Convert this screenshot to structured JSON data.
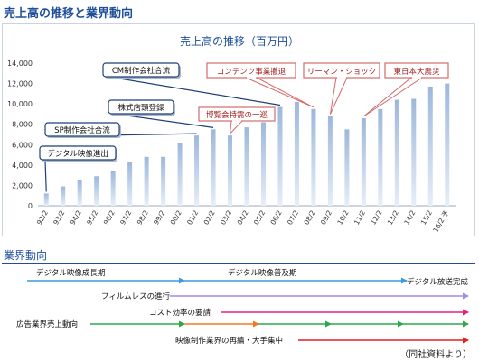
{
  "page_title": "売上高の推移と業界動向",
  "chart_data": {
    "type": "bar",
    "title": "売上高の推移（百万円）",
    "xlabel": "",
    "ylabel": "",
    "ylim": [
      0,
      14000
    ],
    "yticks": [
      0,
      2000,
      4000,
      6000,
      8000,
      10000,
      12000,
      14000
    ],
    "grid": false,
    "categories": [
      "92/2",
      "93/2",
      "94/2",
      "95/2",
      "96/2",
      "97/2",
      "98/2",
      "99/2",
      "00/2",
      "01/2",
      "02/2",
      "03/2",
      "04/2",
      "05/2",
      "06/2",
      "07/2",
      "08/2",
      "09/2",
      "10/2",
      "11/2",
      "12/2",
      "13/2",
      "14/2",
      "15/2",
      "16/2 予"
    ],
    "values": [
      1200,
      1900,
      2500,
      2900,
      3400,
      4300,
      4800,
      4800,
      6200,
      6900,
      7500,
      6900,
      7700,
      8200,
      9700,
      10200,
      9500,
      8800,
      7500,
      8600,
      9500,
      10400,
      10500,
      11700,
      12000
    ],
    "annotations": [
      {
        "text": "デジタル映像進出",
        "category": "92/2",
        "style": "blue"
      },
      {
        "text": "SP制作会社合流",
        "category": "01/2",
        "style": "blue"
      },
      {
        "text": "株式店頭登録",
        "category": "02/2",
        "style": "blue"
      },
      {
        "text": "CM制作会社合流",
        "category": "06/2",
        "style": "blue"
      },
      {
        "text": "博覧会特需の一巡",
        "category": "03/2",
        "style": "red"
      },
      {
        "text": "コンテンツ事業撤退",
        "category": "08/2",
        "style": "red"
      },
      {
        "text": "リーマン・ショック",
        "category": "09/2",
        "style": "red"
      },
      {
        "text": "東日本大震災",
        "category": "11/2",
        "style": "red"
      }
    ]
  },
  "industry": {
    "title": "業界動向",
    "source": "（同社資料より）",
    "colors": {
      "blue": "#3c9be0",
      "purple": "#9b8fe8",
      "magenta": "#e8207a",
      "green": "#2aa84a",
      "orange": "#ef7a22",
      "red": "#e02020"
    },
    "rows": [
      {
        "labels": [
          "デジタル映像成長期",
          "デジタル映像普及期",
          "デジタル放送完成"
        ]
      },
      {
        "labels": [
          "フィルムレスの進行"
        ]
      },
      {
        "labels": [
          "コスト効率の要請"
        ]
      },
      {
        "labels": [
          "広告業界売上動向"
        ]
      },
      {
        "labels": [
          "映像制作業界の再編・大手集中"
        ]
      }
    ]
  }
}
